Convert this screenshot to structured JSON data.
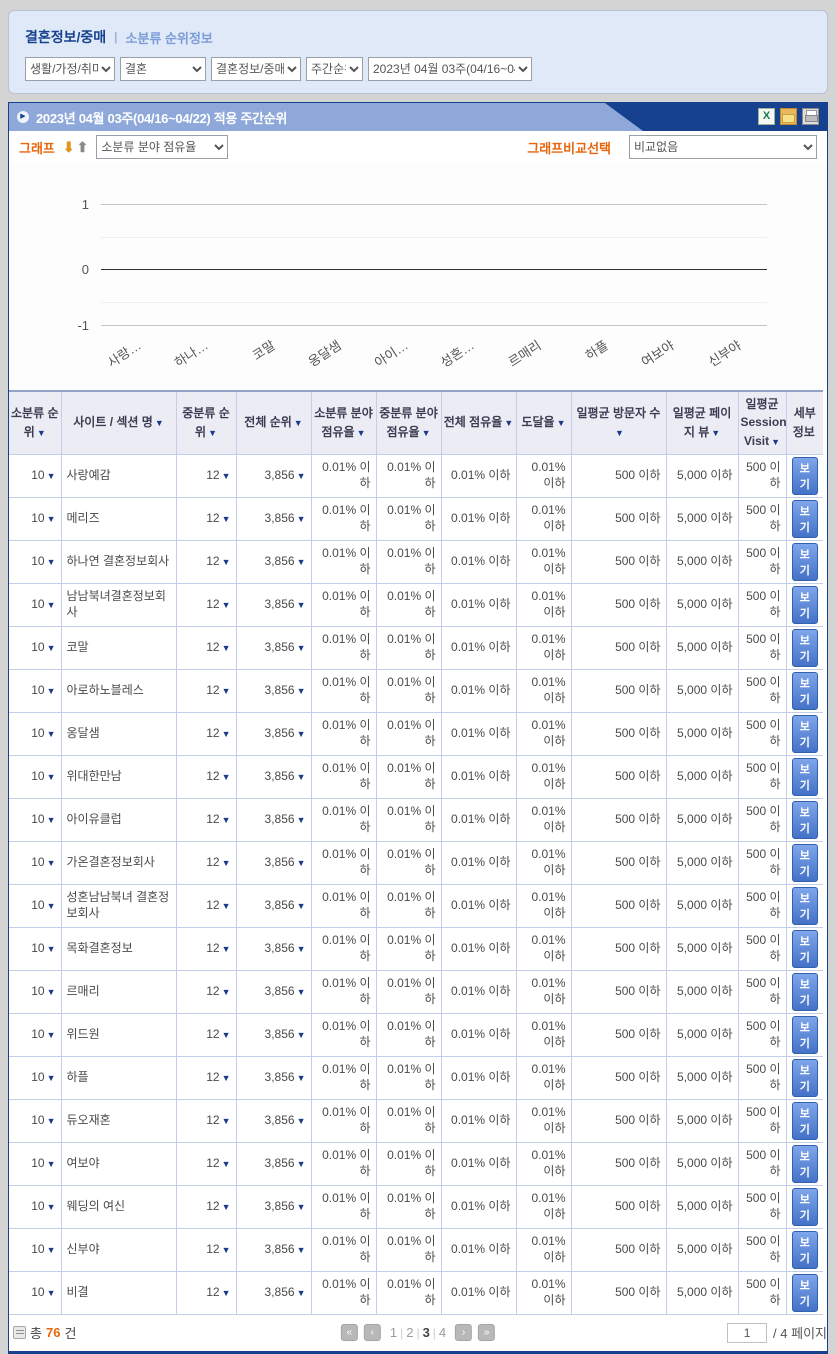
{
  "breadcrumb": {
    "title": "결혼정보/중매",
    "separator": "|",
    "subtitle": "소분류 순위정보"
  },
  "filters": {
    "selects": [
      {
        "name": "category-large",
        "value": "생활/가정/취미"
      },
      {
        "name": "category-mid",
        "value": "결혼"
      },
      {
        "name": "category-small",
        "value": "결혼정보/중매"
      },
      {
        "name": "period-type",
        "value": "주간순위"
      },
      {
        "name": "period-week",
        "value": "2023년 04월 03주(04/16~04/22)"
      }
    ]
  },
  "panel": {
    "title": "2023년  04월  03주(04/16~04/22) 적용 주간순위",
    "icons": [
      "excel-icon",
      "mail-icon",
      "printer-icon"
    ],
    "excel_glyph": "X"
  },
  "graph_controls": {
    "label": "그래프",
    "sort_down_icon": "⬇",
    "sort_up_icon": "⬆",
    "metric_select_value": "소분류 분야 점유율",
    "compare_label": "그래프비교선택",
    "compare_select_value": "비교없음"
  },
  "chart_data": {
    "type": "bar",
    "title": "",
    "categories": [
      "사랑…",
      "하나…",
      "코말",
      "옹달샘",
      "아이…",
      "성혼…",
      "르매리",
      "하플",
      "여보야",
      "신부야"
    ],
    "values": [
      0,
      0,
      0,
      0,
      0,
      0,
      0,
      0,
      0,
      0
    ],
    "xlabel": "",
    "ylabel": "",
    "ylim": [
      -1,
      1
    ],
    "yticks": [
      "1",
      "0",
      "-1"
    ],
    "grid": true,
    "legend": false
  },
  "table": {
    "sort_arrow": "▼",
    "headers": [
      {
        "label": "소분류 순위",
        "sort": "▼"
      },
      {
        "label": "사이트 / 섹션 명",
        "sort": "▼"
      },
      {
        "label": "중분류 순위",
        "sort": "▼"
      },
      {
        "label": "전체 순위",
        "sort": "▼"
      },
      {
        "label": "소분류 분야 점유율",
        "sort": "▼"
      },
      {
        "label": "중분류 분야 점유율",
        "sort": "▼"
      },
      {
        "label": "전체 점유율",
        "sort": "▼"
      },
      {
        "label": "도달율",
        "sort": "▼"
      },
      {
        "label": "일평균 방문자 수",
        "sort": "▼"
      },
      {
        "label": "일평균 페이지 뷰",
        "sort": "▼"
      },
      {
        "label": "일평균 Session Visit",
        "sort": "▼"
      },
      {
        "label": "세부 정보",
        "sort": ""
      }
    ],
    "rows": [
      {
        "rank": "10",
        "name": "사랑예감",
        "mid_rank": "12",
        "total_rank": "3,856",
        "sub_share": "0.01% 이하",
        "mid_share": "0.01% 이하",
        "total_share": "0.01% 이하",
        "reach": "0.01% 이하",
        "visitors": "500 이하",
        "pageviews": "5,000 이하",
        "session": "500 이하",
        "detail": "보기"
      },
      {
        "rank": "10",
        "name": "메리즈",
        "mid_rank": "12",
        "total_rank": "3,856",
        "sub_share": "0.01% 이하",
        "mid_share": "0.01% 이하",
        "total_share": "0.01% 이하",
        "reach": "0.01% 이하",
        "visitors": "500 이하",
        "pageviews": "5,000 이하",
        "session": "500 이하",
        "detail": "보기"
      },
      {
        "rank": "10",
        "name": "하나연 결혼정보회사",
        "mid_rank": "12",
        "total_rank": "3,856",
        "sub_share": "0.01% 이하",
        "mid_share": "0.01% 이하",
        "total_share": "0.01% 이하",
        "reach": "0.01% 이하",
        "visitors": "500 이하",
        "pageviews": "5,000 이하",
        "session": "500 이하",
        "detail": "보기"
      },
      {
        "rank": "10",
        "name": "남남북녀결혼정보회사",
        "mid_rank": "12",
        "total_rank": "3,856",
        "sub_share": "0.01% 이하",
        "mid_share": "0.01% 이하",
        "total_share": "0.01% 이하",
        "reach": "0.01% 이하",
        "visitors": "500 이하",
        "pageviews": "5,000 이하",
        "session": "500 이하",
        "detail": "보기"
      },
      {
        "rank": "10",
        "name": "코말",
        "mid_rank": "12",
        "total_rank": "3,856",
        "sub_share": "0.01% 이하",
        "mid_share": "0.01% 이하",
        "total_share": "0.01% 이하",
        "reach": "0.01% 이하",
        "visitors": "500 이하",
        "pageviews": "5,000 이하",
        "session": "500 이하",
        "detail": "보기"
      },
      {
        "rank": "10",
        "name": "아로하노블레스",
        "mid_rank": "12",
        "total_rank": "3,856",
        "sub_share": "0.01% 이하",
        "mid_share": "0.01% 이하",
        "total_share": "0.01% 이하",
        "reach": "0.01% 이하",
        "visitors": "500 이하",
        "pageviews": "5,000 이하",
        "session": "500 이하",
        "detail": "보기"
      },
      {
        "rank": "10",
        "name": "옹달샘",
        "mid_rank": "12",
        "total_rank": "3,856",
        "sub_share": "0.01% 이하",
        "mid_share": "0.01% 이하",
        "total_share": "0.01% 이하",
        "reach": "0.01% 이하",
        "visitors": "500 이하",
        "pageviews": "5,000 이하",
        "session": "500 이하",
        "detail": "보기"
      },
      {
        "rank": "10",
        "name": "위대한만남",
        "mid_rank": "12",
        "total_rank": "3,856",
        "sub_share": "0.01% 이하",
        "mid_share": "0.01% 이하",
        "total_share": "0.01% 이하",
        "reach": "0.01% 이하",
        "visitors": "500 이하",
        "pageviews": "5,000 이하",
        "session": "500 이하",
        "detail": "보기"
      },
      {
        "rank": "10",
        "name": "아이유클럽",
        "mid_rank": "12",
        "total_rank": "3,856",
        "sub_share": "0.01% 이하",
        "mid_share": "0.01% 이하",
        "total_share": "0.01% 이하",
        "reach": "0.01% 이하",
        "visitors": "500 이하",
        "pageviews": "5,000 이하",
        "session": "500 이하",
        "detail": "보기"
      },
      {
        "rank": "10",
        "name": "가온결혼정보회사",
        "mid_rank": "12",
        "total_rank": "3,856",
        "sub_share": "0.01% 이하",
        "mid_share": "0.01% 이하",
        "total_share": "0.01% 이하",
        "reach": "0.01% 이하",
        "visitors": "500 이하",
        "pageviews": "5,000 이하",
        "session": "500 이하",
        "detail": "보기"
      },
      {
        "rank": "10",
        "name": "성혼남남북녀 결혼정보회사",
        "mid_rank": "12",
        "total_rank": "3,856",
        "sub_share": "0.01% 이하",
        "mid_share": "0.01% 이하",
        "total_share": "0.01% 이하",
        "reach": "0.01% 이하",
        "visitors": "500 이하",
        "pageviews": "5,000 이하",
        "session": "500 이하",
        "detail": "보기"
      },
      {
        "rank": "10",
        "name": "목화결혼정보",
        "mid_rank": "12",
        "total_rank": "3,856",
        "sub_share": "0.01% 이하",
        "mid_share": "0.01% 이하",
        "total_share": "0.01% 이하",
        "reach": "0.01% 이하",
        "visitors": "500 이하",
        "pageviews": "5,000 이하",
        "session": "500 이하",
        "detail": "보기"
      },
      {
        "rank": "10",
        "name": "르매리",
        "mid_rank": "12",
        "total_rank": "3,856",
        "sub_share": "0.01% 이하",
        "mid_share": "0.01% 이하",
        "total_share": "0.01% 이하",
        "reach": "0.01% 이하",
        "visitors": "500 이하",
        "pageviews": "5,000 이하",
        "session": "500 이하",
        "detail": "보기"
      },
      {
        "rank": "10",
        "name": "위드원",
        "mid_rank": "12",
        "total_rank": "3,856",
        "sub_share": "0.01% 이하",
        "mid_share": "0.01% 이하",
        "total_share": "0.01% 이하",
        "reach": "0.01% 이하",
        "visitors": "500 이하",
        "pageviews": "5,000 이하",
        "session": "500 이하",
        "detail": "보기"
      },
      {
        "rank": "10",
        "name": "하플",
        "mid_rank": "12",
        "total_rank": "3,856",
        "sub_share": "0.01% 이하",
        "mid_share": "0.01% 이하",
        "total_share": "0.01% 이하",
        "reach": "0.01% 이하",
        "visitors": "500 이하",
        "pageviews": "5,000 이하",
        "session": "500 이하",
        "detail": "보기"
      },
      {
        "rank": "10",
        "name": "듀오재혼",
        "mid_rank": "12",
        "total_rank": "3,856",
        "sub_share": "0.01% 이하",
        "mid_share": "0.01% 이하",
        "total_share": "0.01% 이하",
        "reach": "0.01% 이하",
        "visitors": "500 이하",
        "pageviews": "5,000 이하",
        "session": "500 이하",
        "detail": "보기"
      },
      {
        "rank": "10",
        "name": "여보야",
        "mid_rank": "12",
        "total_rank": "3,856",
        "sub_share": "0.01% 이하",
        "mid_share": "0.01% 이하",
        "total_share": "0.01% 이하",
        "reach": "0.01% 이하",
        "visitors": "500 이하",
        "pageviews": "5,000 이하",
        "session": "500 이하",
        "detail": "보기"
      },
      {
        "rank": "10",
        "name": "웨딩의 여신",
        "mid_rank": "12",
        "total_rank": "3,856",
        "sub_share": "0.01% 이하",
        "mid_share": "0.01% 이하",
        "total_share": "0.01% 이하",
        "reach": "0.01% 이하",
        "visitors": "500 이하",
        "pageviews": "5,000 이하",
        "session": "500 이하",
        "detail": "보기"
      },
      {
        "rank": "10",
        "name": "신부야",
        "mid_rank": "12",
        "total_rank": "3,856",
        "sub_share": "0.01% 이하",
        "mid_share": "0.01% 이하",
        "total_share": "0.01% 이하",
        "reach": "0.01% 이하",
        "visitors": "500 이하",
        "pageviews": "5,000 이하",
        "session": "500 이하",
        "detail": "보기"
      },
      {
        "rank": "10",
        "name": "비결",
        "mid_rank": "12",
        "total_rank": "3,856",
        "sub_share": "0.01% 이하",
        "mid_share": "0.01% 이하",
        "total_share": "0.01% 이하",
        "reach": "0.01% 이하",
        "visitors": "500 이하",
        "pageviews": "5,000 이하",
        "session": "500 이하",
        "detail": "보기"
      }
    ]
  },
  "footer": {
    "total_prefix": "총",
    "total_count": "76",
    "total_suffix": "건",
    "first_icon": "«",
    "prev_icon": "‹",
    "next_icon": "›",
    "last_icon": "»",
    "pages": [
      "1",
      "2",
      "3",
      "4"
    ],
    "current_page": "3",
    "page_separator": "|",
    "page_input_value": "1",
    "page_total_label": "/ 4 페이지"
  },
  "colors": {
    "accent_navy": "#16418f",
    "accent_orange": "#e8650a",
    "panel_light_blue": "#8fa8da",
    "table_border": "#c3cfe9",
    "header_bg": "#ebecf4"
  }
}
